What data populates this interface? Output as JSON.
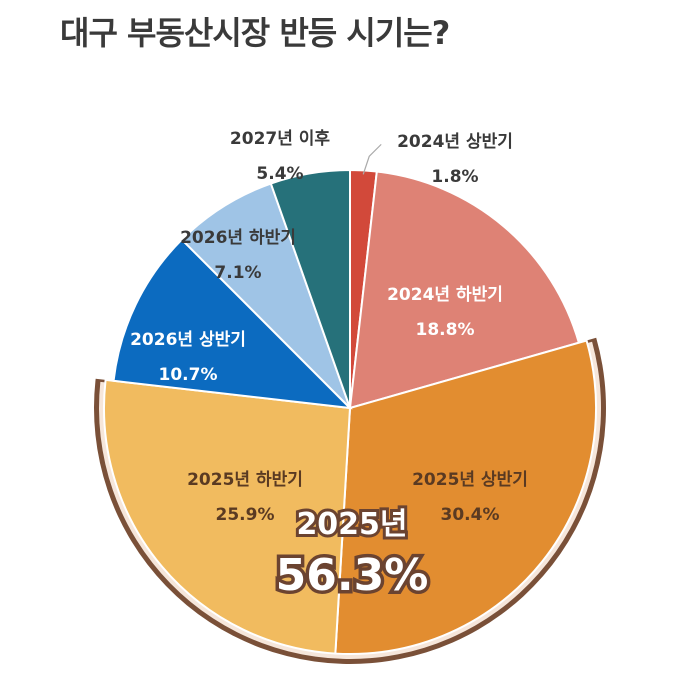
{
  "title": "대구 부동산시장 반등 시기는?",
  "chart_data": {
    "type": "pie",
    "title": "대구 부동산시장 반등 시기는?",
    "slices": [
      {
        "name": "2024년 상반기",
        "value": 1.8,
        "label": "1.8%",
        "color": "#d2493a",
        "text_color": "#3a3a3a",
        "outside": true
      },
      {
        "name": "2024년 하반기",
        "value": 18.8,
        "label": "18.8%",
        "color": "#de8275",
        "text_color": "#ffffff"
      },
      {
        "name": "2025년 상반기",
        "value": 30.4,
        "label": "30.4%",
        "color": "#e28d30",
        "text_color": "#5a3a22"
      },
      {
        "name": "2025년 하반기",
        "value": 25.9,
        "label": "25.9%",
        "color": "#f1bb5f",
        "text_color": "#5a3a22"
      },
      {
        "name": "2026년 상반기",
        "value": 10.7,
        "label": "10.7%",
        "color": "#0c6bc0",
        "text_color": "#ffffff"
      },
      {
        "name": "2026년 하반기",
        "value": 7.1,
        "label": "7.1%",
        "color": "#9fc4e6",
        "text_color": "#3a3a3a",
        "outside": true
      },
      {
        "name": "2027년 이후",
        "value": 5.4,
        "label": "5.4%",
        "color": "#26717a",
        "text_color": "#3a3a3a",
        "outside": true
      }
    ],
    "highlight": {
      "label": "2025년",
      "value_label": "56.3%",
      "value": 56.3,
      "border_color": "#7a5038"
    }
  }
}
